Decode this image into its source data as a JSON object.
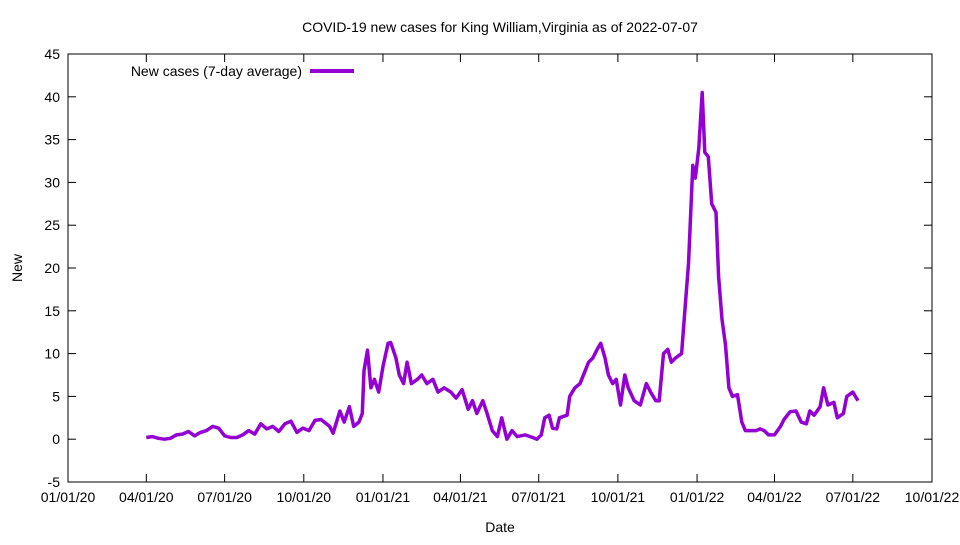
{
  "chart_data": {
    "type": "line",
    "title": "COVID-19 new cases for King William,Virginia as of 2022-07-07",
    "xlabel": "Date",
    "ylabel": "New",
    "ylim": [
      -5,
      45
    ],
    "yticks": [
      -5,
      0,
      5,
      10,
      15,
      20,
      25,
      30,
      35,
      40,
      45
    ],
    "xlim": [
      "2020-01-01",
      "2022-10-01"
    ],
    "xticks": [
      {
        "date": "2020-01-01",
        "label": "01/01/20"
      },
      {
        "date": "2020-04-01",
        "label": "04/01/20"
      },
      {
        "date": "2020-07-01",
        "label": "07/01/20"
      },
      {
        "date": "2020-10-01",
        "label": "10/01/20"
      },
      {
        "date": "2021-01-01",
        "label": "01/01/21"
      },
      {
        "date": "2021-04-01",
        "label": "04/01/21"
      },
      {
        "date": "2021-07-01",
        "label": "07/01/21"
      },
      {
        "date": "2021-10-01",
        "label": "10/01/21"
      },
      {
        "date": "2022-01-01",
        "label": "01/01/22"
      },
      {
        "date": "2022-04-01",
        "label": "04/01/22"
      },
      {
        "date": "2022-07-01",
        "label": "07/01/22"
      },
      {
        "date": "2022-10-01",
        "label": "10/01/22"
      }
    ],
    "grid": false,
    "legend_position": "top-left",
    "series": [
      {
        "name": "New cases (7-day average)",
        "color": "#9400D3",
        "x": [
          "2020-04-01",
          "2020-04-08",
          "2020-04-15",
          "2020-04-22",
          "2020-04-29",
          "2020-05-06",
          "2020-05-13",
          "2020-05-20",
          "2020-05-27",
          "2020-06-03",
          "2020-06-10",
          "2020-06-17",
          "2020-06-24",
          "2020-07-01",
          "2020-07-08",
          "2020-07-15",
          "2020-07-22",
          "2020-07-29",
          "2020-08-05",
          "2020-08-12",
          "2020-08-19",
          "2020-08-26",
          "2020-09-02",
          "2020-09-09",
          "2020-09-16",
          "2020-09-23",
          "2020-09-30",
          "2020-10-07",
          "2020-10-14",
          "2020-10-21",
          "2020-10-31",
          "2020-11-04",
          "2020-11-12",
          "2020-11-17",
          "2020-11-23",
          "2020-11-28",
          "2020-12-04",
          "2020-12-08",
          "2020-12-10",
          "2020-12-14",
          "2020-12-18",
          "2020-12-22",
          "2020-12-27",
          "2021-01-01",
          "2021-01-07",
          "2021-01-10",
          "2021-01-16",
          "2021-01-20",
          "2021-01-25",
          "2021-01-29",
          "2021-02-03",
          "2021-02-10",
          "2021-02-15",
          "2021-02-21",
          "2021-02-28",
          "2021-03-06",
          "2021-03-13",
          "2021-03-21",
          "2021-03-27",
          "2021-04-03",
          "2021-04-10",
          "2021-04-15",
          "2021-04-20",
          "2021-04-27",
          "2021-05-02",
          "2021-05-08",
          "2021-05-14",
          "2021-05-19",
          "2021-05-25",
          "2021-05-31",
          "2021-06-06",
          "2021-06-15",
          "2021-06-24",
          "2021-06-29",
          "2021-07-04",
          "2021-07-08",
          "2021-07-13",
          "2021-07-17",
          "2021-07-22",
          "2021-07-25",
          "2021-08-03",
          "2021-08-06",
          "2021-08-12",
          "2021-08-18",
          "2021-08-24",
          "2021-08-28",
          "2021-09-02",
          "2021-09-07",
          "2021-09-11",
          "2021-09-16",
          "2021-09-20",
          "2021-09-25",
          "2021-09-29",
          "2021-10-04",
          "2021-10-09",
          "2021-10-13",
          "2021-10-20",
          "2021-10-27",
          "2021-11-03",
          "2021-11-08",
          "2021-11-14",
          "2021-11-18",
          "2021-11-23",
          "2021-11-28",
          "2021-12-02",
          "2021-12-07",
          "2021-12-14",
          "2021-12-17",
          "2021-12-22",
          "2021-12-27",
          "2021-12-30",
          "2022-01-03",
          "2022-01-07",
          "2022-01-10",
          "2022-01-14",
          "2022-01-18",
          "2022-01-23",
          "2022-01-26",
          "2022-01-30",
          "2022-02-03",
          "2022-02-07",
          "2022-02-11",
          "2022-02-17",
          "2022-02-22",
          "2022-02-26",
          "2022-03-04",
          "2022-03-11",
          "2022-03-15",
          "2022-03-20",
          "2022-03-25",
          "2022-04-01",
          "2022-04-08",
          "2022-04-12",
          "2022-04-19",
          "2022-04-26",
          "2022-05-02",
          "2022-05-08",
          "2022-05-12",
          "2022-05-17",
          "2022-05-24",
          "2022-05-28",
          "2022-06-02",
          "2022-06-09",
          "2022-06-13",
          "2022-06-20",
          "2022-06-24",
          "2022-07-01",
          "2022-07-07"
        ],
        "values": [
          0.2,
          0.3,
          0.1,
          0.0,
          0.1,
          0.5,
          0.6,
          0.9,
          0.4,
          0.8,
          1.0,
          1.5,
          1.3,
          0.4,
          0.2,
          0.2,
          0.5,
          1.0,
          0.6,
          1.8,
          1.2,
          1.5,
          0.9,
          1.8,
          2.1,
          0.8,
          1.3,
          1.0,
          2.2,
          2.3,
          1.5,
          0.7,
          3.3,
          2.0,
          3.8,
          1.5,
          2.0,
          3.0,
          8.0,
          10.4,
          6.0,
          7.0,
          5.5,
          8.5,
          11.2,
          11.3,
          9.5,
          7.5,
          6.5,
          9.0,
          6.5,
          7.0,
          7.5,
          6.5,
          7.0,
          5.5,
          6.0,
          5.5,
          4.8,
          5.8,
          3.5,
          4.5,
          3.0,
          4.5,
          3.0,
          1.0,
          0.3,
          2.5,
          0.0,
          1.0,
          0.3,
          0.5,
          0.2,
          0.0,
          0.5,
          2.5,
          2.8,
          1.3,
          1.2,
          2.5,
          2.8,
          5.0,
          6.0,
          6.5,
          8.0,
          9.0,
          9.5,
          10.5,
          11.2,
          9.5,
          7.5,
          6.5,
          7.0,
          4.0,
          7.5,
          6.0,
          4.5,
          4.0,
          6.5,
          5.5,
          4.5,
          4.5,
          10.0,
          10.5,
          9.0,
          9.5,
          10.0,
          14.0,
          20.5,
          32.0,
          30.5,
          34.0,
          40.5,
          33.5,
          33.0,
          27.5,
          26.5,
          19.0,
          14.0,
          11.0,
          6.0,
          5.0,
          5.2,
          2.0,
          1.0,
          1.0,
          1.0,
          1.2,
          1.0,
          0.5,
          0.5,
          1.5,
          2.3,
          3.2,
          3.3,
          2.0,
          1.8,
          3.3,
          2.8,
          3.8,
          6.0,
          4.0,
          4.3,
          2.5,
          3.0,
          5.0,
          5.5,
          4.5
        ]
      }
    ]
  }
}
